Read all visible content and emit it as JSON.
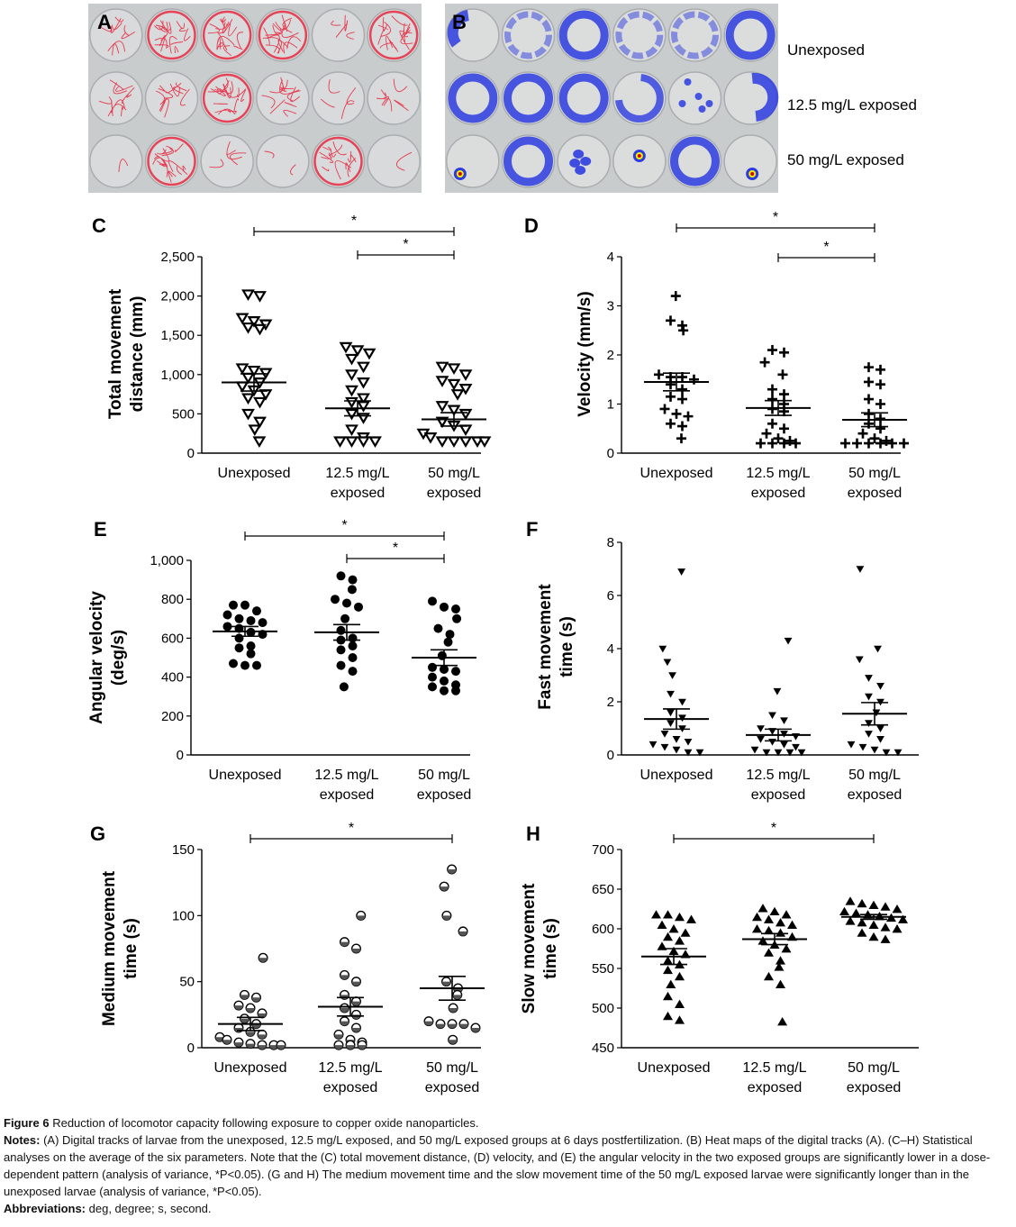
{
  "panels_photo": {
    "A": {
      "letter": "A"
    },
    "B": {
      "letter": "B",
      "row_labels": [
        "Unexposed",
        "12.5 mg/L exposed",
        "50 mg/L exposed"
      ]
    }
  },
  "colors": {
    "track_red": "#e8283f",
    "heat_blue": "#2d3ce0",
    "plate_bg": "#c9cccd",
    "marker": "#000000"
  },
  "chart_data": [
    {
      "id": "C",
      "type": "scatter",
      "ylabel": "Total movement\ndistance (mm)",
      "ylim": [
        0,
        2500
      ],
      "yticks": [
        0,
        500,
        1000,
        1500,
        2000,
        2500
      ],
      "ytick_labels": [
        "0",
        "500",
        "1,000",
        "1,500",
        "2,000",
        "2,500"
      ],
      "categories": [
        "Unexposed",
        "12.5 mg/L\nexposed",
        "50 mg/L\nexposed"
      ],
      "marker": "triangle-down-open",
      "groups": [
        {
          "points": [
            2020,
            2000,
            1720,
            1680,
            1640,
            1600,
            1580,
            1080,
            1050,
            1020,
            960,
            900,
            850,
            800,
            750,
            700,
            650,
            500,
            400,
            300,
            150
          ],
          "mean": 900,
          "sem": 110
        },
        {
          "points": [
            1350,
            1310,
            1270,
            1200,
            1100,
            1000,
            900,
            800,
            700,
            650,
            600,
            500,
            450,
            300,
            200,
            150,
            150,
            150,
            150
          ],
          "mean": 570,
          "sem": 95
        },
        {
          "points": [
            1100,
            1080,
            1000,
            920,
            880,
            820,
            750,
            600,
            550,
            500,
            400,
            350,
            300,
            250,
            200,
            150,
            150,
            150,
            150,
            150
          ],
          "mean": 430,
          "sem": 85
        }
      ],
      "significance": [
        {
          "from": 0,
          "to": 2,
          "label": "*"
        },
        {
          "from": 1,
          "to": 2,
          "label": "*"
        }
      ]
    },
    {
      "id": "D",
      "type": "scatter",
      "ylabel": "Velocity (mm/s)",
      "ylim": [
        0,
        4
      ],
      "yticks": [
        0,
        1,
        2,
        3,
        4
      ],
      "ytick_labels": [
        "0",
        "1",
        "2",
        "3",
        "4"
      ],
      "categories": [
        "Unexposed",
        "12.5 mg/L\nexposed",
        "50 mg/L\nexposed"
      ],
      "marker": "plus",
      "groups": [
        {
          "points": [
            3.2,
            2.7,
            2.6,
            2.5,
            1.6,
            1.55,
            1.55,
            1.5,
            1.4,
            1.3,
            1.15,
            1.1,
            0.9,
            0.8,
            0.75,
            0.6,
            0.55,
            0.3
          ],
          "mean": 1.45,
          "sem": 0.18
        },
        {
          "points": [
            2.1,
            2.05,
            1.85,
            1.6,
            1.3,
            1.2,
            1.1,
            1.0,
            0.9,
            0.85,
            0.6,
            0.5,
            0.4,
            0.3,
            0.25,
            0.2,
            0.2,
            0.2,
            0.2
          ],
          "mean": 0.92,
          "sem": 0.15
        },
        {
          "points": [
            1.75,
            1.7,
            1.45,
            1.4,
            1.1,
            1.0,
            0.8,
            0.7,
            0.6,
            0.5,
            0.4,
            0.3,
            0.25,
            0.2,
            0.2,
            0.2,
            0.2,
            0.2,
            0.2
          ],
          "mean": 0.68,
          "sem": 0.14
        }
      ],
      "significance": [
        {
          "from": 0,
          "to": 2,
          "label": "*"
        },
        {
          "from": 1,
          "to": 2,
          "label": "*"
        }
      ]
    },
    {
      "id": "E",
      "type": "scatter",
      "ylabel": "Angular velocity\n(deg/s)",
      "ylim": [
        0,
        1000
      ],
      "yticks": [
        0,
        200,
        400,
        600,
        800,
        1000
      ],
      "ytick_labels": [
        "0",
        "200",
        "400",
        "600",
        "800",
        "1,000"
      ],
      "categories": [
        "Unexposed",
        "12.5 mg/L\nexposed",
        "50 mg/L\nexposed"
      ],
      "marker": "circle-filled",
      "groups": [
        {
          "points": [
            770,
            770,
            740,
            720,
            700,
            690,
            680,
            660,
            650,
            630,
            620,
            600,
            560,
            550,
            520,
            470,
            460,
            460
          ],
          "mean": 635,
          "sem": 25
        },
        {
          "points": [
            920,
            900,
            850,
            800,
            780,
            760,
            700,
            640,
            600,
            590,
            560,
            540,
            500,
            460,
            430,
            350
          ],
          "mean": 630,
          "sem": 40
        },
        {
          "points": [
            790,
            760,
            750,
            700,
            650,
            620,
            580,
            510,
            450,
            440,
            430,
            400,
            380,
            360,
            350,
            330,
            330
          ],
          "mean": 500,
          "sem": 40
        }
      ],
      "significance": [
        {
          "from": 0,
          "to": 2,
          "label": "*"
        },
        {
          "from": 1,
          "to": 2,
          "label": "*"
        }
      ]
    },
    {
      "id": "F",
      "type": "scatter",
      "ylabel": "Fast movement\ntime (s)",
      "ylim": [
        0,
        8
      ],
      "yticks": [
        0,
        2,
        4,
        6,
        8
      ],
      "ytick_labels": [
        "0",
        "2",
        "4",
        "6",
        "8"
      ],
      "categories": [
        "Unexposed",
        "12.5 mg/L\nexposed",
        "50 mg/L\nexposed"
      ],
      "marker": "triangle-down-filled",
      "groups": [
        {
          "points": [
            6.9,
            4.0,
            3.5,
            3.0,
            2.3,
            2.0,
            1.6,
            1.4,
            1.2,
            1.0,
            0.8,
            0.6,
            0.5,
            0.4,
            0.3,
            0.2,
            0.1,
            0.1
          ],
          "mean": 1.35,
          "sem": 0.38
        },
        {
          "points": [
            4.3,
            2.4,
            1.5,
            1.3,
            1.0,
            0.9,
            0.8,
            0.7,
            0.6,
            0.5,
            0.4,
            0.3,
            0.2,
            0.1,
            0.1,
            0.1,
            0.1
          ],
          "mean": 0.75,
          "sem": 0.22
        },
        {
          "points": [
            7.0,
            4.0,
            3.6,
            2.9,
            2.6,
            2.2,
            2.0,
            1.6,
            1.2,
            1.0,
            0.8,
            0.6,
            0.4,
            0.3,
            0.2,
            0.1,
            0.1
          ],
          "mean": 1.55,
          "sem": 0.42
        }
      ],
      "significance": []
    },
    {
      "id": "G",
      "type": "scatter",
      "ylabel": "Medium movement\ntime (s)",
      "ylim": [
        0,
        150
      ],
      "yticks": [
        0,
        50,
        100,
        150
      ],
      "ytick_labels": [
        "0",
        "50",
        "100",
        "150"
      ],
      "categories": [
        "Unexposed",
        "12.5 mg/L\nexposed",
        "50 mg/L\nexposed"
      ],
      "marker": "circle-half",
      "groups": [
        {
          "points": [
            68,
            40,
            38,
            32,
            30,
            26,
            22,
            18,
            15,
            12,
            10,
            8,
            6,
            4,
            3,
            2,
            2,
            2
          ],
          "mean": 18,
          "sem": 5
        },
        {
          "points": [
            100,
            80,
            75,
            55,
            50,
            40,
            35,
            30,
            25,
            20,
            15,
            10,
            6,
            4,
            2,
            2,
            2
          ],
          "mean": 31,
          "sem": 7
        },
        {
          "points": [
            135,
            122,
            100,
            88,
            50,
            45,
            40,
            30,
            20,
            18,
            18,
            18,
            15,
            6
          ],
          "mean": 45,
          "sem": 9
        }
      ],
      "significance": [
        {
          "from": 0,
          "to": 2,
          "label": "*"
        }
      ]
    },
    {
      "id": "H",
      "type": "scatter",
      "ylabel": "Slow movement\ntime (s)",
      "ylim": [
        450,
        700
      ],
      "yticks": [
        450,
        500,
        550,
        600,
        650,
        700
      ],
      "ytick_labels": [
        "450",
        "500",
        "550",
        "600",
        "650",
        "700"
      ],
      "categories": [
        "Unexposed",
        "12.5 mg/L\nexposed",
        "50 mg/L\nexposed"
      ],
      "marker": "triangle-up-filled",
      "groups": [
        {
          "points": [
            618,
            618,
            615,
            612,
            605,
            600,
            595,
            590,
            585,
            578,
            572,
            568,
            560,
            555,
            548,
            540,
            530,
            515,
            505,
            490,
            485
          ],
          "mean": 565,
          "sem": 10
        },
        {
          "points": [
            626,
            622,
            618,
            615,
            612,
            608,
            605,
            600,
            598,
            595,
            590,
            585,
            580,
            575,
            570,
            560,
            552,
            540,
            530,
            483
          ],
          "mean": 587,
          "sem": 7
        },
        {
          "points": [
            635,
            632,
            630,
            628,
            625,
            622,
            620,
            618,
            616,
            614,
            612,
            610,
            608,
            605,
            602,
            600,
            595,
            590,
            587
          ],
          "mean": 615,
          "sem": 3
        }
      ],
      "significance": [
        {
          "from": 0,
          "to": 2,
          "label": "*"
        }
      ]
    }
  ],
  "caption": {
    "figure_label": "Figure 6",
    "figure_title": "Reduction of locomotor capacity following exposure to copper oxide nanoparticles.",
    "notes_label": "Notes:",
    "notes_text": "(A) Digital tracks of larvae from the unexposed, 12.5 mg/L exposed, and 50 mg/L exposed groups at 6 days postfertilization. (B) Heat maps of the digital tracks (A). (C–H) Statistical analyses on the average of the six parameters. Note that the (C) total movement distance, (D) velocity, and (E) the angular velocity in the two exposed groups are significantly lower in a dose-dependent pattern (analysis of variance, *P<0.05). (G and H) The medium movement time and the slow movement time of the 50 mg/L exposed larvae were significantly longer than in the unexposed larvae (analysis of variance, *P<0.05).",
    "abbr_label": "Abbreviations:",
    "abbr_text": "deg, degree; s, second."
  }
}
